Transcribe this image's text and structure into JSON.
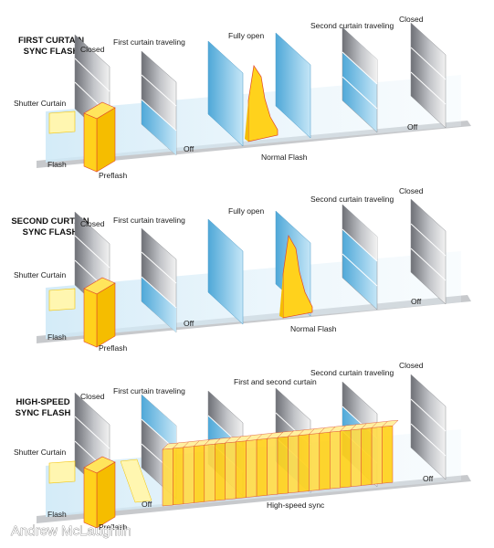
{
  "panels": [
    {
      "title_lines": [
        "FIRST CURTAIN",
        "SYNC FLASH"
      ],
      "stages": [
        "Closed",
        "First curtain traveling",
        "Fully open",
        "Second curtain traveling",
        "Closed"
      ],
      "shutter_curtain_label": "Shutter Curtain",
      "flash_label": "Flash",
      "preflash_label": "Preflash",
      "off_labels": [
        "Off",
        "Off"
      ],
      "flash_event_label": "Normal Flash"
    },
    {
      "title_lines": [
        "SECOND CURTAIN",
        "SYNC FLASH"
      ],
      "stages": [
        "Closed",
        "First curtain traveling",
        "Fully open",
        "Second curtain traveling",
        "Closed"
      ],
      "shutter_curtain_label": "Shutter Curtain",
      "flash_label": "Flash",
      "preflash_label": "Preflash",
      "off_labels": [
        "Off",
        "Off"
      ],
      "flash_event_label": "Normal Flash"
    },
    {
      "title_lines": [
        "HIGH-SPEED",
        "SYNC FLASH"
      ],
      "stages": [
        "Closed",
        "First curtain traveling",
        "First and second curtain",
        "Second curtain traveling",
        "Closed"
      ],
      "shutter_curtain_label": "Shutter Curtain",
      "flash_label": "Flash",
      "preflash_label": "Preflash",
      "off_labels": [
        "Off",
        "Off"
      ],
      "flash_event_label": "High-speed sync"
    }
  ],
  "credit": "Andrew McLaughlin",
  "colors": {
    "curtain_gray": "#9a9ca2",
    "open_blue": "#8ec9ea",
    "flash_yellow": "#ffd21c",
    "flash_outline": "#e0462a",
    "timeline": "#c7c9cc"
  }
}
